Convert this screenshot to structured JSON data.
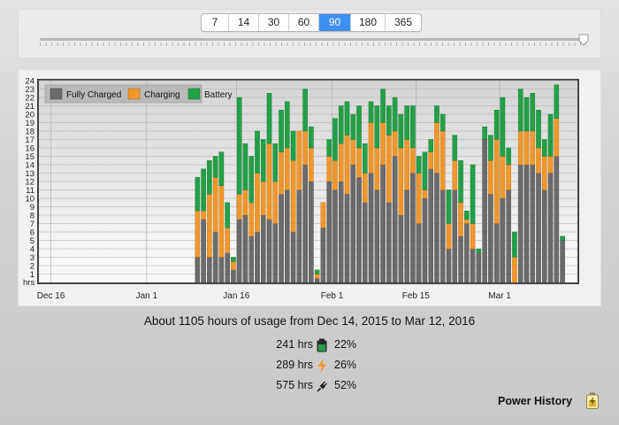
{
  "range_selector": {
    "options": [
      "7",
      "14",
      "30",
      "60",
      "90",
      "180",
      "365"
    ],
    "selected": "90"
  },
  "chart_data": {
    "type": "bar",
    "stacked": true,
    "y_axis": {
      "unit_label": "hrs",
      "ylim": [
        0,
        24
      ],
      "ticks": [
        "1",
        "2",
        "3",
        "4",
        "5",
        "6",
        "7",
        "8",
        "9",
        "10",
        "11",
        "12",
        "13",
        "14",
        "15",
        "16",
        "17",
        "18",
        "19",
        "20",
        "21",
        "22",
        "23",
        "24"
      ]
    },
    "x_axis": {
      "tick_labels": [
        "Dec 16",
        "Jan 1",
        "Jan 16",
        "Feb 1",
        "Feb 15",
        "Mar 1"
      ],
      "tick_days": [
        2,
        18,
        33,
        49,
        63,
        77
      ],
      "start_date": "Dec 14, 2015",
      "num_days": 90
    },
    "legend": {
      "placement": "top-left",
      "entries": [
        "Fully Charged",
        "Charging",
        "Battery"
      ]
    },
    "colors": {
      "Fully Charged": "#6b6b6b",
      "Charging": "#f0972a",
      "Battery": "#23a047"
    },
    "day_index_start": 26,
    "series": [
      {
        "name": "Fully Charged",
        "values": [
          3,
          7.5,
          3,
          6,
          3,
          3.5,
          1.5,
          7.5,
          8,
          5.5,
          6,
          8,
          7.5,
          7,
          10.5,
          11,
          6,
          11,
          14,
          12,
          0.5,
          6.5,
          12,
          11,
          12,
          10.5,
          14,
          12.5,
          9.5,
          13,
          11,
          14,
          9.5,
          15,
          8,
          11,
          13,
          7,
          10,
          13.5,
          13,
          11,
          4,
          11,
          5.5,
          7,
          4,
          3.5,
          17,
          10.5,
          7,
          10,
          11,
          0,
          14,
          14,
          14,
          13,
          11,
          13,
          15,
          5
        ]
      },
      {
        "name": "Charging",
        "values": [
          5.5,
          1,
          7.5,
          6.5,
          8.5,
          3,
          1,
          3,
          3,
          4,
          7,
          4,
          9,
          5,
          5,
          5,
          8.5,
          7,
          4,
          4,
          0.5,
          3,
          3,
          3.5,
          4.5,
          7,
          3,
          3.5,
          3.5,
          6,
          5,
          5,
          8,
          3,
          8,
          6,
          3,
          6,
          1,
          2,
          6,
          7,
          3,
          3.5,
          4,
          0.5,
          3,
          0,
          0,
          4,
          10,
          5,
          3,
          3,
          4,
          4,
          4,
          3,
          4,
          2,
          4.5,
          0
        ]
      },
      {
        "name": "Battery",
        "values": [
          4,
          5,
          4,
          2.5,
          4,
          3,
          0.5,
          11.5,
          5.5,
          5.5,
          5,
          5,
          6,
          4.5,
          5,
          5.5,
          3.5,
          0,
          5,
          2.5,
          0.5,
          0,
          2,
          5,
          4.5,
          4,
          3,
          5,
          3.5,
          2.5,
          5,
          4,
          3.5,
          4,
          4,
          4,
          5,
          2,
          4.5,
          1.5,
          2,
          2,
          4,
          3,
          5,
          1,
          7,
          0.5,
          1.5,
          3,
          3.5,
          7,
          2,
          3,
          5,
          4,
          4.5,
          4.5,
          2,
          5,
          4,
          0.5
        ]
      }
    ]
  },
  "summary": "About 1105 hours of usage from Dec 14, 2015 to Mar 12, 2016",
  "stats": [
    {
      "hours": "241 hrs",
      "percent": "22%",
      "icon": "battery-icon",
      "color": "#23a047"
    },
    {
      "hours": "289 hrs",
      "percent": "26%",
      "icon": "charging-bolt-icon",
      "color": "#f0972a"
    },
    {
      "hours": "575 hrs",
      "percent": "52%",
      "icon": "power-plug-icon",
      "color": "#222222"
    }
  ],
  "footer": {
    "title": "Power History",
    "icon": "battery-status-icon"
  }
}
